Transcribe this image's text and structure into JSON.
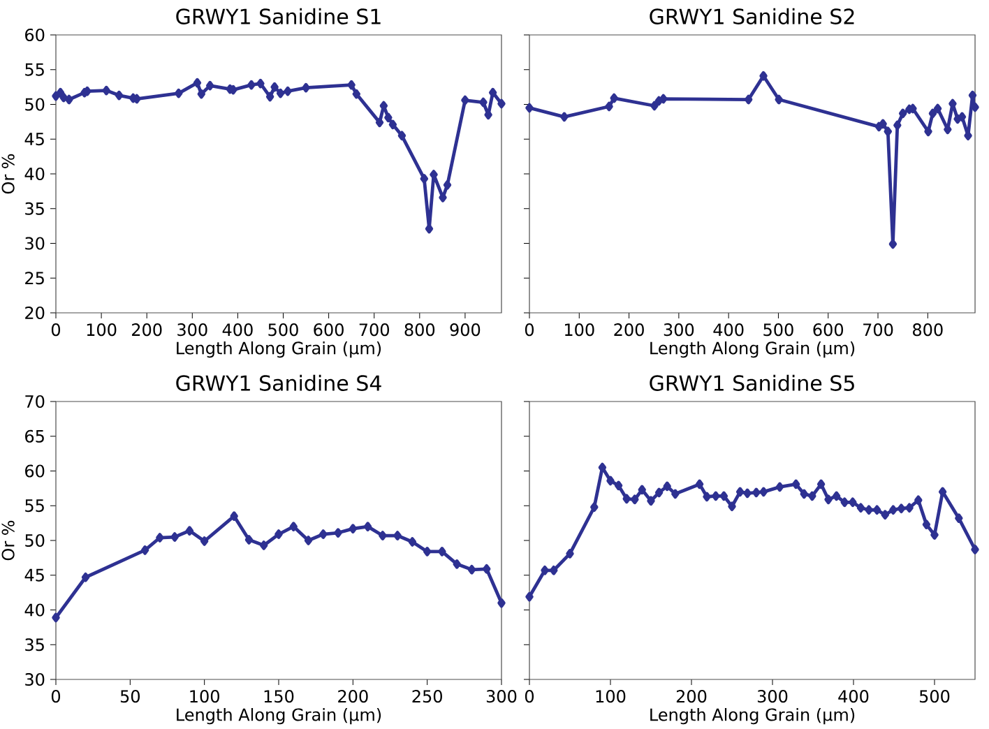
{
  "chart_data": [
    {
      "type": "line",
      "title": "GRWY1 Sanidine S1",
      "xlabel": "Length Along Grain (μm)",
      "ylabel": "Or %",
      "marker": "diamond",
      "xlim": [
        0,
        980
      ],
      "ylim": [
        20,
        60
      ],
      "xticks": [
        0,
        100,
        200,
        300,
        400,
        500,
        600,
        700,
        800,
        900
      ],
      "yticks": [
        20,
        25,
        30,
        35,
        40,
        45,
        50,
        55,
        60
      ],
      "x": [
        0,
        10,
        17,
        29,
        63,
        69,
        111,
        139,
        170,
        178,
        270,
        311,
        320,
        339,
        383,
        390,
        430,
        450,
        471,
        481,
        494,
        510,
        550,
        650,
        661,
        712,
        721,
        731,
        741,
        761,
        810,
        821,
        831,
        851,
        861,
        900,
        940,
        951,
        961,
        980
      ],
      "series": [
        {
          "color": "#2e3192",
          "values": [
            51.2,
            51.7,
            51.0,
            50.7,
            51.7,
            51.9,
            52.0,
            51.3,
            50.9,
            50.8,
            51.6,
            53.1,
            51.5,
            52.7,
            52.2,
            52.1,
            52.8,
            53.0,
            51.1,
            52.5,
            51.6,
            51.9,
            52.4,
            52.8,
            51.5,
            47.4,
            49.8,
            48.1,
            47.1,
            45.5,
            39.3,
            32.1,
            39.9,
            36.6,
            38.4,
            50.6,
            50.3,
            48.5,
            51.7,
            50.1
          ]
        }
      ]
    },
    {
      "type": "line",
      "title": "GRWY1 Sanidine S2",
      "xlabel": "Length Along Grain (μm)",
      "marker": "diamond",
      "tick_labels": "x",
      "xlim": [
        0,
        895
      ],
      "ylim": [
        20,
        60
      ],
      "xticks": [
        0,
        100,
        200,
        300,
        400,
        500,
        600,
        700,
        800
      ],
      "yticks": [
        20,
        25,
        30,
        35,
        40,
        45,
        50,
        55,
        60
      ],
      "x": [
        0,
        70,
        160,
        170,
        251,
        260,
        269,
        440,
        470,
        501,
        702,
        710,
        720,
        730,
        739,
        750,
        763,
        770,
        801,
        810,
        820,
        840,
        850,
        860,
        869,
        881,
        890,
        895
      ],
      "series": [
        {
          "color": "#2e3192",
          "values": [
            49.5,
            48.2,
            49.7,
            50.9,
            49.8,
            50.5,
            50.8,
            50.7,
            54.1,
            50.7,
            46.8,
            47.2,
            46.1,
            29.9,
            47.0,
            48.7,
            49.3,
            49.4,
            46.1,
            48.7,
            49.4,
            46.4,
            50.1,
            47.9,
            48.2,
            45.5,
            51.3,
            49.6
          ]
        }
      ]
    },
    {
      "type": "line",
      "title": "GRWY1 Sanidine S4",
      "xlabel": "Length Along Grain (μm)",
      "ylabel": "Or %",
      "marker": "diamond",
      "xlim": [
        0,
        300
      ],
      "ylim": [
        30,
        70
      ],
      "xticks": [
        0,
        50,
        100,
        150,
        200,
        250,
        300
      ],
      "yticks": [
        30,
        35,
        40,
        45,
        50,
        55,
        60,
        65,
        70
      ],
      "x": [
        0,
        20,
        60,
        70,
        80,
        90,
        100,
        120,
        130,
        140,
        150,
        160,
        170,
        180,
        190,
        200,
        210,
        220,
        230,
        240,
        250,
        260,
        270,
        280,
        290,
        300
      ],
      "series": [
        {
          "color": "#2e3192",
          "values": [
            38.9,
            44.7,
            48.6,
            50.4,
            50.5,
            51.4,
            49.9,
            53.5,
            50.1,
            49.3,
            50.9,
            52.0,
            50.0,
            50.9,
            51.1,
            51.7,
            52.0,
            50.7,
            50.7,
            49.8,
            48.4,
            48.4,
            46.6,
            45.8,
            45.9,
            41.0
          ]
        }
      ]
    },
    {
      "type": "line",
      "title": "GRWY1 Sanidine S5",
      "xlabel": "Length Along Grain (μm)",
      "marker": "diamond",
      "tick_labels": "x",
      "xlim": [
        0,
        550
      ],
      "ylim": [
        30,
        70
      ],
      "xticks": [
        0,
        100,
        200,
        300,
        400,
        500
      ],
      "yticks": [
        30,
        35,
        40,
        45,
        50,
        55,
        60,
        65,
        70
      ],
      "x": [
        0,
        19,
        30,
        50,
        80,
        90,
        100,
        110,
        120,
        130,
        139,
        150,
        160,
        170,
        180,
        210,
        219,
        230,
        240,
        250,
        260,
        269,
        280,
        289,
        309,
        329,
        339,
        349,
        360,
        369,
        379,
        389,
        399,
        409,
        419,
        429,
        439,
        449,
        459,
        469,
        480,
        490,
        500,
        510,
        530,
        550
      ],
      "series": [
        {
          "color": "#2e3192",
          "values": [
            41.9,
            45.7,
            45.7,
            48.1,
            54.8,
            60.5,
            58.6,
            57.9,
            56.0,
            55.9,
            57.3,
            55.7,
            56.9,
            57.8,
            56.7,
            58.1,
            56.3,
            56.4,
            56.4,
            54.9,
            57.0,
            56.8,
            56.9,
            57.0,
            57.7,
            58.1,
            56.7,
            56.4,
            58.1,
            55.9,
            56.4,
            55.5,
            55.5,
            54.7,
            54.4,
            54.4,
            53.7,
            54.4,
            54.6,
            54.7,
            55.8,
            52.3,
            50.8,
            57.0,
            53.2,
            48.7
          ]
        }
      ]
    }
  ]
}
